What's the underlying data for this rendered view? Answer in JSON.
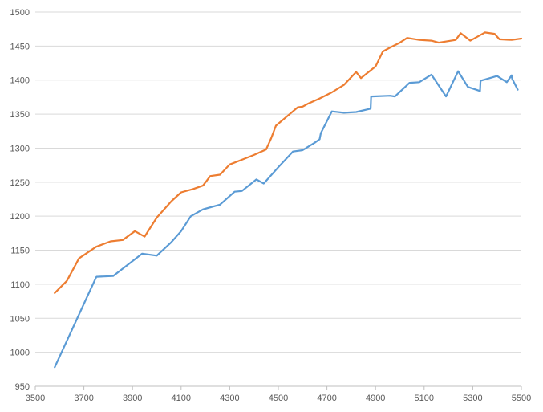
{
  "chart_data": {
    "type": "line",
    "title": "",
    "xlabel": "",
    "ylabel": "",
    "xlim": [
      3500,
      5500
    ],
    "ylim": [
      950,
      1500
    ],
    "x_ticks": [
      3500,
      3700,
      3900,
      4100,
      4300,
      4500,
      4700,
      4900,
      5100,
      5300,
      5500
    ],
    "y_ticks": [
      950,
      1000,
      1050,
      1100,
      1150,
      1200,
      1250,
      1300,
      1350,
      1400,
      1450,
      1500
    ],
    "grid": {
      "horizontal": true,
      "vertical": false
    },
    "legend": "none",
    "series": [
      {
        "color": "#5B9BD5",
        "points": [
          [
            3580,
            978
          ],
          [
            3750,
            1110
          ],
          [
            3752,
            1111
          ],
          [
            3820,
            1112
          ],
          [
            3940,
            1145
          ],
          [
            4000,
            1142
          ],
          [
            4060,
            1162
          ],
          [
            4100,
            1178
          ],
          [
            4140,
            1200
          ],
          [
            4190,
            1210
          ],
          [
            4260,
            1217
          ],
          [
            4320,
            1236
          ],
          [
            4350,
            1237
          ],
          [
            4410,
            1254
          ],
          [
            4440,
            1248
          ],
          [
            4500,
            1272
          ],
          [
            4560,
            1295
          ],
          [
            4600,
            1297
          ],
          [
            4650,
            1308
          ],
          [
            4670,
            1313
          ],
          [
            4675,
            1322
          ],
          [
            4720,
            1354
          ],
          [
            4770,
            1352
          ],
          [
            4820,
            1353
          ],
          [
            4880,
            1358
          ],
          [
            4882,
            1376
          ],
          [
            4960,
            1377
          ],
          [
            4980,
            1376
          ],
          [
            5040,
            1396
          ],
          [
            5080,
            1397
          ],
          [
            5130,
            1408
          ],
          [
            5190,
            1376
          ],
          [
            5240,
            1413
          ],
          [
            5280,
            1390
          ],
          [
            5330,
            1384
          ],
          [
            5332,
            1399
          ],
          [
            5400,
            1406
          ],
          [
            5440,
            1397
          ],
          [
            5460,
            1407
          ],
          [
            5462,
            1402
          ],
          [
            5485,
            1386
          ]
        ]
      },
      {
        "color": "#ED7D31",
        "points": [
          [
            3580,
            1087
          ],
          [
            3630,
            1105
          ],
          [
            3680,
            1138
          ],
          [
            3750,
            1155
          ],
          [
            3810,
            1163
          ],
          [
            3860,
            1165
          ],
          [
            3910,
            1178
          ],
          [
            3950,
            1170
          ],
          [
            4000,
            1198
          ],
          [
            4060,
            1222
          ],
          [
            4100,
            1235
          ],
          [
            4150,
            1240
          ],
          [
            4190,
            1245
          ],
          [
            4220,
            1259
          ],
          [
            4260,
            1261
          ],
          [
            4300,
            1276
          ],
          [
            4350,
            1283
          ],
          [
            4400,
            1290
          ],
          [
            4450,
            1298
          ],
          [
            4470,
            1314
          ],
          [
            4490,
            1333
          ],
          [
            4530,
            1345
          ],
          [
            4580,
            1360
          ],
          [
            4600,
            1361
          ],
          [
            4620,
            1365
          ],
          [
            4670,
            1373
          ],
          [
            4720,
            1382
          ],
          [
            4770,
            1393
          ],
          [
            4820,
            1412
          ],
          [
            4840,
            1403
          ],
          [
            4900,
            1420
          ],
          [
            4930,
            1442
          ],
          [
            4960,
            1448
          ],
          [
            5000,
            1455
          ],
          [
            5030,
            1462
          ],
          [
            5080,
            1459
          ],
          [
            5130,
            1458
          ],
          [
            5160,
            1455
          ],
          [
            5230,
            1459
          ],
          [
            5250,
            1469
          ],
          [
            5290,
            1458
          ],
          [
            5350,
            1470
          ],
          [
            5390,
            1468
          ],
          [
            5410,
            1460
          ],
          [
            5460,
            1459
          ],
          [
            5500,
            1461
          ]
        ]
      }
    ]
  }
}
